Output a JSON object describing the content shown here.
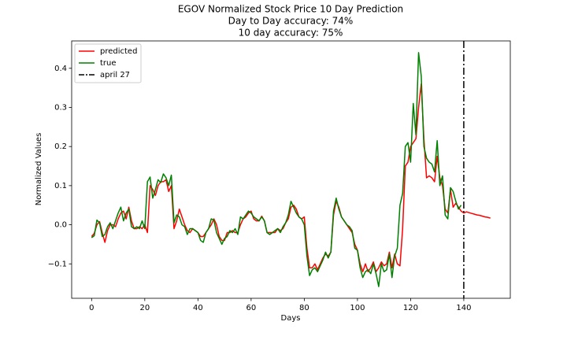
{
  "chart_data": {
    "type": "line",
    "title": "EGOV Normalized Stock Price 10 Day Prediction",
    "subtitle": [
      "Day to Day accuracy: 74%",
      "10 day accuracy: 75%"
    ],
    "xlabel": "Days",
    "ylabel": "Normalized Values",
    "x": [
      0,
      1,
      2,
      3,
      4,
      5,
      6,
      7,
      8,
      9,
      10,
      11,
      12,
      13,
      14,
      15,
      16,
      17,
      18,
      19,
      20,
      21,
      22,
      23,
      24,
      25,
      26,
      27,
      28,
      29,
      30,
      31,
      32,
      33,
      34,
      35,
      36,
      37,
      38,
      39,
      40,
      41,
      42,
      43,
      44,
      45,
      46,
      47,
      48,
      49,
      50,
      51,
      52,
      53,
      54,
      55,
      56,
      57,
      58,
      59,
      60,
      61,
      62,
      63,
      64,
      65,
      66,
      67,
      68,
      69,
      70,
      71,
      72,
      73,
      74,
      75,
      76,
      77,
      78,
      79,
      80,
      81,
      82,
      83,
      84,
      85,
      86,
      87,
      88,
      89,
      90,
      91,
      92,
      93,
      94,
      95,
      96,
      97,
      98,
      99,
      100,
      101,
      102,
      103,
      104,
      105,
      106,
      107,
      108,
      109,
      110,
      111,
      112,
      113,
      114,
      115,
      116,
      117,
      118,
      119,
      120,
      121,
      122,
      123,
      124,
      125,
      126,
      127,
      128,
      129,
      130,
      131,
      132,
      133,
      134,
      135,
      136,
      137,
      138,
      139,
      140,
      141,
      142,
      143,
      144,
      145,
      146,
      147,
      148,
      149,
      150
    ],
    "series": [
      {
        "name": "predicted",
        "color": "#ff0000",
        "values": [
          -0.03,
          -0.022,
          0.0,
          0.008,
          -0.02,
          -0.045,
          -0.015,
          0.0,
          0.0,
          -0.005,
          0.015,
          0.03,
          0.035,
          0.015,
          0.045,
          0.01,
          -0.01,
          -0.01,
          -0.005,
          -0.01,
          0.0,
          -0.02,
          0.1,
          0.09,
          0.075,
          0.1,
          0.11,
          0.11,
          0.115,
          0.085,
          0.1,
          -0.01,
          0.01,
          0.04,
          0.02,
          0.0,
          -0.015,
          -0.02,
          -0.01,
          -0.015,
          -0.02,
          -0.03,
          -0.03,
          -0.02,
          -0.01,
          0.0,
          0.015,
          0.0,
          -0.03,
          -0.04,
          -0.04,
          -0.02,
          -0.02,
          -0.015,
          -0.02,
          -0.02,
          0.0,
          0.015,
          0.02,
          0.03,
          0.035,
          0.015,
          0.01,
          0.01,
          0.022,
          0.01,
          -0.02,
          -0.02,
          -0.02,
          -0.02,
          -0.01,
          -0.015,
          -0.01,
          0.005,
          0.015,
          0.045,
          0.05,
          0.04,
          0.02,
          0.015,
          0.02,
          -0.06,
          -0.11,
          -0.11,
          -0.1,
          -0.115,
          -0.1,
          -0.085,
          -0.075,
          -0.08,
          -0.07,
          0.025,
          0.06,
          0.045,
          0.02,
          0.01,
          0.0,
          -0.01,
          -0.02,
          -0.05,
          -0.065,
          -0.1,
          -0.12,
          -0.1,
          -0.12,
          -0.11,
          -0.095,
          -0.12,
          -0.11,
          -0.095,
          -0.105,
          -0.1,
          -0.07,
          -0.11,
          -0.075,
          -0.1,
          -0.105,
          -0.01,
          0.15,
          0.16,
          0.2,
          0.21,
          0.22,
          0.3,
          0.36,
          0.22,
          0.12,
          0.125,
          0.12,
          0.11,
          0.175,
          0.12,
          0.1,
          0.04,
          0.03,
          0.09,
          0.045,
          0.055,
          0.045,
          0.035,
          0.03,
          0.033,
          0.031,
          0.029,
          0.027,
          0.025,
          0.024,
          0.022,
          0.02,
          0.019,
          0.017
        ]
      },
      {
        "name": "true",
        "color": "#008000",
        "values": [
          -0.033,
          -0.028,
          0.012,
          0.005,
          -0.03,
          -0.025,
          -0.005,
          0.005,
          -0.01,
          0.01,
          0.03,
          0.045,
          0.01,
          0.03,
          0.04,
          -0.005,
          -0.01,
          -0.005,
          -0.01,
          0.01,
          -0.01,
          0.11,
          0.122,
          0.068,
          0.09,
          0.115,
          0.108,
          0.13,
          0.12,
          0.1,
          0.127,
          0.005,
          0.025,
          0.02,
          0.0,
          -0.005,
          -0.025,
          -0.01,
          -0.01,
          -0.015,
          -0.02,
          -0.04,
          -0.045,
          -0.02,
          -0.01,
          0.015,
          0.012,
          -0.02,
          -0.035,
          -0.05,
          -0.035,
          -0.03,
          -0.015,
          -0.02,
          -0.01,
          -0.025,
          0.02,
          0.015,
          0.025,
          0.035,
          0.03,
          0.02,
          0.015,
          0.01,
          0.02,
          0.01,
          -0.02,
          -0.025,
          -0.02,
          -0.015,
          -0.01,
          -0.02,
          -0.005,
          0.005,
          0.025,
          0.06,
          0.045,
          0.03,
          0.02,
          0.015,
          0.0,
          -0.08,
          -0.13,
          -0.115,
          -0.11,
          -0.12,
          -0.105,
          -0.09,
          -0.07,
          -0.085,
          -0.07,
          0.035,
          0.068,
          0.04,
          0.02,
          0.01,
          0.0,
          -0.005,
          -0.015,
          -0.06,
          -0.065,
          -0.11,
          -0.135,
          -0.12,
          -0.115,
          -0.125,
          -0.1,
          -0.125,
          -0.158,
          -0.1,
          -0.12,
          -0.115,
          -0.075,
          -0.135,
          -0.08,
          -0.06,
          0.05,
          0.08,
          0.2,
          0.21,
          0.16,
          0.31,
          0.23,
          0.44,
          0.38,
          0.2,
          0.17,
          0.16,
          0.155,
          0.135,
          0.215,
          0.1,
          0.125,
          0.025,
          0.015,
          0.095,
          0.085,
          0.06,
          0.04,
          0.05,
          null,
          null,
          null,
          null,
          null,
          null,
          null,
          null,
          null,
          null,
          null
        ]
      }
    ],
    "vlines": [
      {
        "x": 140,
        "name": "april 27",
        "color": "#000000"
      }
    ],
    "xlim": [
      -7.5,
      157.5
    ],
    "ylim": [
      -0.188,
      0.47
    ],
    "xticks": [
      0,
      20,
      40,
      60,
      80,
      100,
      120,
      140
    ],
    "yticks": [
      {
        "value": -0.1,
        "label": "−0.1"
      },
      {
        "value": 0,
        "label": "0.0"
      },
      0.1,
      0.2,
      0.3,
      0.4
    ],
    "legend": "upper left"
  }
}
